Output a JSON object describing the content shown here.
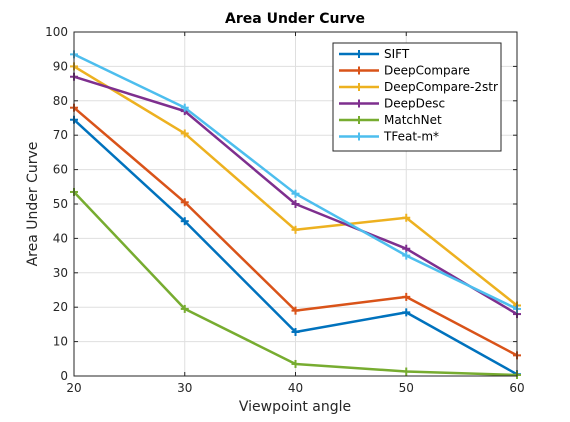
{
  "chart_data": {
    "type": "line",
    "title": "Area Under Curve",
    "xlabel": "Viewpoint angle",
    "ylabel": "Area Under Curve",
    "xlim": [
      20,
      60
    ],
    "ylim": [
      0,
      100
    ],
    "xticks": [
      20,
      30,
      40,
      50,
      60
    ],
    "yticks": [
      0,
      10,
      20,
      30,
      40,
      50,
      60,
      70,
      80,
      90,
      100
    ],
    "grid": true,
    "legend_position": "top-right",
    "x": [
      20,
      30,
      40,
      50,
      60
    ],
    "series": [
      {
        "name": "SIFT",
        "color": "#0072BD",
        "values": [
          74.5,
          45,
          12.8,
          18.5,
          0.5
        ]
      },
      {
        "name": "DeepCompare",
        "color": "#D95319",
        "values": [
          78,
          50.5,
          19,
          23,
          6
        ]
      },
      {
        "name": "DeepCompare-2str",
        "color": "#EDB120",
        "values": [
          90,
          70.5,
          42.5,
          46,
          20.5
        ]
      },
      {
        "name": "DeepDesc",
        "color": "#7E2F8E",
        "values": [
          87,
          77,
          50,
          37,
          18
        ]
      },
      {
        "name": "MatchNet",
        "color": "#77AC30",
        "values": [
          53.5,
          19.5,
          3.5,
          1.3,
          0.3
        ]
      },
      {
        "name": "TFeat-m*",
        "color": "#4DBEEE",
        "values": [
          93.5,
          78,
          53,
          35,
          19.5
        ]
      }
    ]
  }
}
